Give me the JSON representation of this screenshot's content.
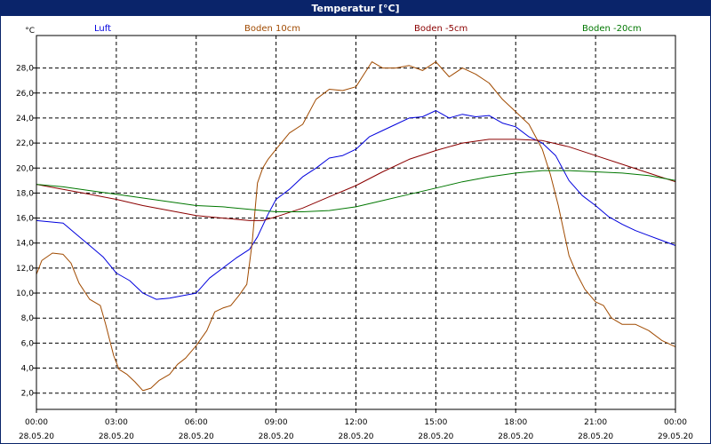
{
  "window": {
    "title": "Temperatur [°C]"
  },
  "chart_data": {
    "type": "line",
    "title": "Temperatur [°C]",
    "ylabel": "°C",
    "xlabel": "",
    "ylim": [
      0.7,
      30.6
    ],
    "xlim": [
      0,
      24
    ],
    "grid": true,
    "legend_position": "top",
    "y_ticks": [
      "2,0",
      "4,0",
      "6,0",
      "8,0",
      "10,0",
      "12,0",
      "14,0",
      "16,0",
      "18,0",
      "20,0",
      "22,0",
      "24,0",
      "26,0",
      "28,0"
    ],
    "x_ticks": [
      {
        "time": "00:00",
        "date": "28.05.20"
      },
      {
        "time": "03:00",
        "date": "28.05.20"
      },
      {
        "time": "06:00",
        "date": "28.05.20"
      },
      {
        "time": "09:00",
        "date": "28.05.20"
      },
      {
        "time": "12:00",
        "date": "28.05.20"
      },
      {
        "time": "15:00",
        "date": "28.05.20"
      },
      {
        "time": "18:00",
        "date": "28.05.20"
      },
      {
        "time": "21:00",
        "date": "28.05.20"
      },
      {
        "time": "00:00",
        "date": "29.05.20"
      }
    ],
    "series": [
      {
        "name": "Luft",
        "color": "#0000dd",
        "x": [
          0,
          1,
          1.5,
          2,
          2.5,
          3,
          3.5,
          4,
          4.5,
          5,
          5.5,
          6,
          6.5,
          7,
          7.5,
          8,
          8.3,
          8.7,
          9,
          9.5,
          10,
          10.5,
          11,
          11.5,
          12,
          12.5,
          13,
          13.5,
          14,
          14.5,
          15,
          15.5,
          16,
          16.5,
          17,
          17.5,
          18,
          18.5,
          19,
          19.5,
          20,
          20.5,
          21,
          21.5,
          22,
          22.5,
          23,
          23.5,
          24
        ],
        "values": [
          15.8,
          15.6,
          14.7,
          13.8,
          12.9,
          11.6,
          11.0,
          10.0,
          9.5,
          9.6,
          9.8,
          10.0,
          11.2,
          12.0,
          12.8,
          13.5,
          14.5,
          16.3,
          17.5,
          18.3,
          19.3,
          20.0,
          20.8,
          21.0,
          21.5,
          22.5,
          23.0,
          23.5,
          24.0,
          24.1,
          24.6,
          24.0,
          24.3,
          24.1,
          24.2,
          23.6,
          23.3,
          22.5,
          22.0,
          21.0,
          19.0,
          17.8,
          17.0,
          16.1,
          15.5,
          15.0,
          14.6,
          14.2,
          13.8
        ]
      },
      {
        "name": "Boden 10cm",
        "color": "#a04a00",
        "x": [
          0,
          0.2,
          0.6,
          1,
          1.3,
          1.6,
          2,
          2.4,
          2.6,
          2.9,
          3.1,
          3.4,
          3.7,
          4,
          4.3,
          4.6,
          5,
          5.3,
          5.6,
          6,
          6.4,
          6.7,
          7,
          7.3,
          7.6,
          7.9,
          8.1,
          8.3,
          8.5,
          8.7,
          9,
          9.5,
          10,
          10.5,
          11,
          11.5,
          12,
          12.3,
          12.6,
          13,
          13.5,
          14,
          14.5,
          15,
          15.5,
          16,
          16.5,
          17,
          17.5,
          18,
          18.5,
          19,
          19.3,
          19.6,
          20,
          20.3,
          20.6,
          21,
          21.3,
          21.6,
          22,
          22.5,
          23,
          23.5,
          24
        ],
        "values": [
          11.5,
          12.6,
          13.2,
          13.1,
          12.4,
          10.8,
          9.5,
          9.0,
          7.5,
          5.0,
          3.9,
          3.5,
          2.9,
          2.2,
          2.4,
          3.0,
          3.5,
          4.3,
          4.8,
          5.8,
          7.0,
          8.5,
          8.8,
          9.0,
          9.8,
          10.7,
          14.0,
          18.8,
          20.0,
          20.7,
          21.5,
          22.8,
          23.5,
          25.5,
          26.3,
          26.2,
          26.5,
          27.5,
          28.5,
          28.0,
          28.0,
          28.2,
          27.8,
          28.5,
          27.3,
          28.0,
          27.5,
          26.8,
          25.5,
          24.5,
          23.5,
          21.5,
          19.5,
          17.0,
          13.0,
          11.5,
          10.3,
          9.3,
          9.0,
          8.0,
          7.5,
          7.5,
          7.0,
          6.2,
          5.7
        ]
      },
      {
        "name": "Boden -5cm",
        "color": "#8b0000",
        "x": [
          0,
          1,
          2,
          3,
          4,
          5,
          6,
          7,
          8,
          8.5,
          9,
          10,
          11,
          12,
          13,
          14,
          15,
          16,
          17,
          18,
          19,
          20,
          21,
          22,
          23,
          24
        ],
        "values": [
          18.7,
          18.3,
          17.9,
          17.5,
          17.0,
          16.6,
          16.2,
          16.0,
          15.8,
          15.8,
          16.1,
          16.8,
          17.7,
          18.6,
          19.7,
          20.7,
          21.4,
          22.0,
          22.3,
          22.3,
          22.2,
          21.7,
          21.0,
          20.3,
          19.6,
          18.9
        ]
      },
      {
        "name": "Boden -20cm",
        "color": "#007700",
        "x": [
          0,
          1,
          2,
          3,
          4,
          5,
          6,
          7,
          8,
          9,
          10,
          11,
          12,
          13,
          14,
          15,
          16,
          17,
          18,
          19,
          20,
          21,
          22,
          23,
          24
        ],
        "values": [
          18.7,
          18.5,
          18.2,
          17.9,
          17.6,
          17.3,
          17.0,
          16.9,
          16.7,
          16.5,
          16.5,
          16.6,
          16.9,
          17.4,
          17.9,
          18.4,
          18.9,
          19.3,
          19.6,
          19.8,
          19.8,
          19.7,
          19.6,
          19.4,
          19.0
        ]
      }
    ]
  }
}
